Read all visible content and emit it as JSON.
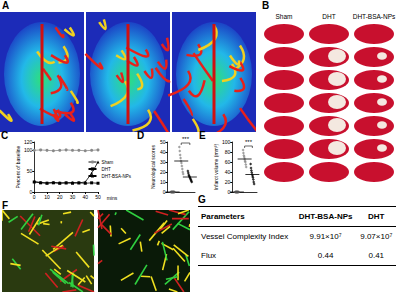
{
  "figure": {
    "A": {
      "panel": "A"
    },
    "B": {
      "panel": "B",
      "columns": [
        "Sham",
        "DHT",
        "DHT-BSA-NPs"
      ]
    },
    "F": {
      "panel": "F"
    },
    "G": {
      "panel": "G",
      "table": {
        "header": [
          "Parameters",
          "DHT-BSA-NPs",
          "DHT"
        ],
        "rows": [
          [
            "Vessel Complexity Index",
            "9.91×10⁷",
            "9.07×10⁷"
          ],
          [
            "Flux",
            "0.44",
            "0.41"
          ]
        ]
      }
    }
  },
  "chart_data": [
    {
      "panel": "C",
      "type": "line",
      "x_label": "mins",
      "y_label": "Percent of baseline",
      "x": [
        0,
        5,
        10,
        15,
        20,
        25,
        30,
        35,
        40,
        45,
        50
      ],
      "series": [
        {
          "name": "Sham",
          "color": "#888888",
          "marker": "circle",
          "values": [
            100,
            101,
            100,
            99,
            100,
            101,
            100,
            100,
            99,
            100,
            101
          ]
        },
        {
          "name": "DHT",
          "color": "#000000",
          "marker": "square",
          "values": [
            24,
            22,
            21,
            22,
            21,
            22,
            21,
            22,
            21,
            22,
            21
          ]
        },
        {
          "name": "DHT-BSA-NPs",
          "color": "#000000",
          "marker": "triangle",
          "values": [
            25,
            23,
            22,
            23,
            22,
            22,
            23,
            22,
            24,
            45,
            72
          ]
        }
      ],
      "xlim": [
        0,
        50
      ],
      "xticks": [
        0,
        10,
        20,
        30,
        40,
        50
      ],
      "ylim": [
        0,
        120
      ],
      "yticks": [
        0,
        50,
        100
      ],
      "legend": "right"
    },
    {
      "panel": "D",
      "type": "scatter",
      "y_label": "Neurological scores",
      "tick_labels": "y",
      "groups": [
        {
          "color": "#888888",
          "marker": "circle",
          "mean": 0,
          "values": [
            0,
            0,
            0,
            0,
            0,
            0,
            0,
            0
          ]
        },
        {
          "color": "#888888",
          "marker": "diamond",
          "mean": 31,
          "values": [
            45,
            41,
            37,
            34,
            31,
            29,
            26,
            23,
            20,
            18
          ]
        },
        {
          "color": "#000000",
          "marker": "diamond",
          "mean": 15,
          "values": [
            21,
            19,
            17,
            16,
            15,
            14,
            13,
            12,
            11,
            10
          ]
        }
      ],
      "annotations": [
        "***"
      ],
      "ylim": [
        0,
        50
      ],
      "yticks": [
        0,
        10,
        20,
        30,
        40,
        50
      ]
    },
    {
      "panel": "E",
      "type": "scatter",
      "y_label": "Infarct volume (mm³)",
      "tick_labels": "y",
      "groups": [
        {
          "color": "#888888",
          "marker": "circle",
          "mean": 0,
          "values": [
            0,
            0,
            0,
            0,
            0,
            0,
            0,
            0
          ]
        },
        {
          "color": "#888888",
          "marker": "diamond",
          "mean": 66,
          "values": [
            84,
            78,
            73,
            70,
            66,
            62,
            60,
            55,
            50
          ]
        },
        {
          "color": "#000000",
          "marker": "diamond",
          "mean": 35,
          "values": [
            56,
            48,
            43,
            39,
            35,
            32,
            29,
            25,
            20,
            16
          ]
        }
      ],
      "annotations": [
        "***"
      ],
      "ylim": [
        0,
        100
      ],
      "yticks": [
        0,
        20,
        40,
        60,
        80,
        100
      ]
    }
  ]
}
